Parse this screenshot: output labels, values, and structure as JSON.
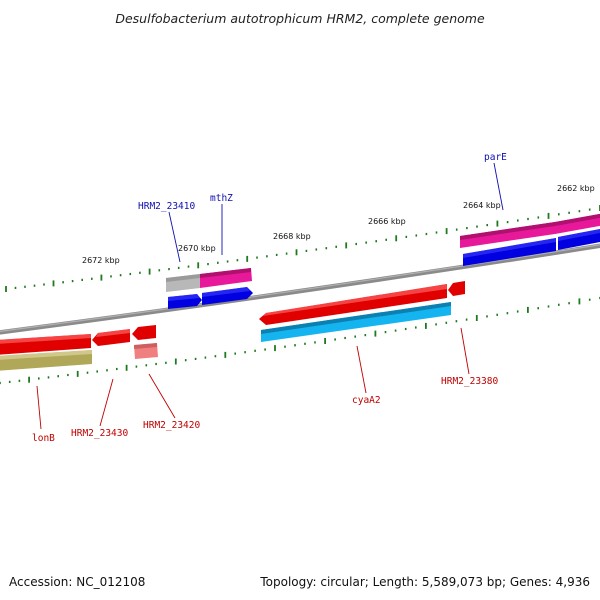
{
  "title": "Desulfobacterium autotrophicum HRM2, complete genome",
  "footer": {
    "accession": "Accession: NC_012108",
    "summary": "Topology: circular; Length: 5,589,073 bp; Genes: 4,936"
  },
  "colors": {
    "backbone": "#808080",
    "tick": "#1e7a1e",
    "red": "#e00000",
    "magenta": "#e8189a",
    "blue": "#0000e0",
    "cyan": "#14b4f0",
    "olive": "#b0a858",
    "salmon": "#f08080",
    "grey": "#b8b8b8",
    "red_label": "#c00000",
    "blue_label": "#1010b0"
  },
  "kbp_labels": [
    "2672 kbp",
    "2670 kbp",
    "2668 kbp",
    "2666 kbp",
    "2664 kbp",
    "2662 kbp"
  ],
  "gene_labels": {
    "lonB": "lonB",
    "hrm2_23430": "HRM2_23430",
    "hrm2_23420": "HRM2_23420",
    "cyaA2": "cyaA2",
    "hrm2_23380": "HRM2_23380",
    "hrm2_23410": "HRM2_23410",
    "mthZ": "mthZ",
    "parE": "parE"
  }
}
